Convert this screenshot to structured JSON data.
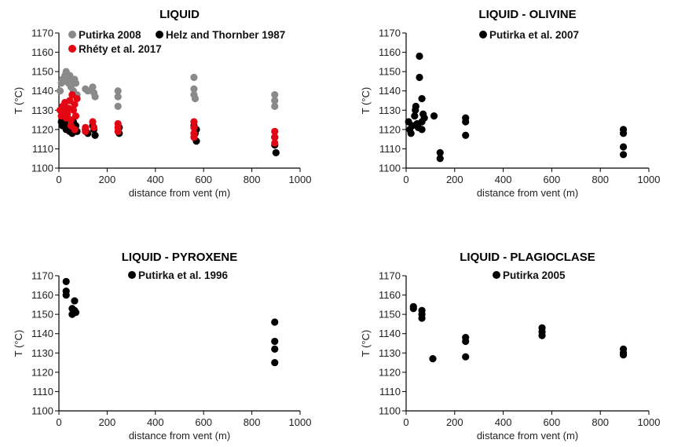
{
  "chart_data": [
    {
      "type": "scatter",
      "title": "LIQUID",
      "xlabel": "distance from vent (m)",
      "ylabel": "T (°C)",
      "xlim": [
        0,
        1000
      ],
      "ylim": [
        1100,
        1170
      ],
      "xticks": [
        0,
        200,
        400,
        600,
        800,
        1000
      ],
      "yticks": [
        1100,
        1110,
        1120,
        1130,
        1140,
        1150,
        1160,
        1170
      ],
      "legend_position": "top",
      "series": [
        {
          "name": "Putirka 2008",
          "color": "#8a8a8a",
          "points": [
            [
              5,
              1140
            ],
            [
              10,
              1144
            ],
            [
              15,
              1146
            ],
            [
              20,
              1145
            ],
            [
              25,
              1148
            ],
            [
              30,
              1150
            ],
            [
              35,
              1147
            ],
            [
              40,
              1144
            ],
            [
              45,
              1148
            ],
            [
              50,
              1142
            ],
            [
              55,
              1145
            ],
            [
              60,
              1140
            ],
            [
              65,
              1146
            ],
            [
              70,
              1144
            ],
            [
              75,
              1138
            ],
            [
              110,
              1141
            ],
            [
              120,
              1140
            ],
            [
              140,
              1142
            ],
            [
              145,
              1139
            ],
            [
              150,
              1137
            ],
            [
              245,
              1140
            ],
            [
              245,
              1137
            ],
            [
              245,
              1132
            ],
            [
              560,
              1147
            ],
            [
              560,
              1141
            ],
            [
              560,
              1138
            ],
            [
              565,
              1136
            ],
            [
              895,
              1138
            ],
            [
              895,
              1135
            ],
            [
              895,
              1132
            ]
          ]
        },
        {
          "name": "Helz and Thornber 1987",
          "color": "#000000",
          "points": [
            [
              10,
              1124
            ],
            [
              15,
              1122
            ],
            [
              20,
              1125
            ],
            [
              25,
              1123
            ],
            [
              30,
              1120
            ],
            [
              35,
              1126
            ],
            [
              40,
              1121
            ],
            [
              45,
              1119
            ],
            [
              50,
              1122
            ],
            [
              55,
              1118
            ],
            [
              60,
              1124
            ],
            [
              65,
              1120
            ],
            [
              70,
              1122
            ],
            [
              75,
              1119
            ],
            [
              110,
              1120
            ],
            [
              120,
              1118
            ],
            [
              140,
              1122
            ],
            [
              145,
              1120
            ],
            [
              150,
              1117
            ],
            [
              250,
              1121
            ],
            [
              250,
              1118
            ],
            [
              560,
              1122
            ],
            [
              565,
              1118
            ],
            [
              570,
              1120
            ],
            [
              570,
              1114
            ],
            [
              895,
              1116
            ],
            [
              895,
              1112
            ],
            [
              900,
              1108
            ]
          ]
        },
        {
          "name": "Rhéty et al. 2017",
          "color": "#e30613",
          "points": [
            [
              5,
              1130
            ],
            [
              10,
              1127
            ],
            [
              15,
              1132
            ],
            [
              20,
              1129
            ],
            [
              25,
              1134
            ],
            [
              30,
              1126
            ],
            [
              35,
              1128
            ],
            [
              40,
              1131
            ],
            [
              45,
              1135
            ],
            [
              50,
              1125
            ],
            [
              55,
              1138
            ],
            [
              60,
              1130
            ],
            [
              65,
              1133
            ],
            [
              70,
              1127
            ],
            [
              75,
              1136
            ],
            [
              50,
              1122
            ],
            [
              65,
              1120
            ],
            [
              110,
              1119
            ],
            [
              110,
              1121
            ],
            [
              140,
              1124
            ],
            [
              145,
              1121
            ],
            [
              245,
              1123
            ],
            [
              245,
              1121
            ],
            [
              245,
              1119
            ],
            [
              560,
              1124
            ],
            [
              560,
              1121
            ],
            [
              560,
              1118
            ],
            [
              560,
              1116
            ],
            [
              895,
              1119
            ],
            [
              895,
              1116
            ],
            [
              895,
              1113
            ]
          ]
        }
      ]
    },
    {
      "type": "scatter",
      "title": "LIQUID - OLIVINE",
      "xlabel": "distance from vent (m)",
      "ylabel": "T (°C)",
      "xlim": [
        0,
        1000
      ],
      "ylim": [
        1100,
        1170
      ],
      "xticks": [
        0,
        200,
        400,
        600,
        800,
        1000
      ],
      "yticks": [
        1100,
        1110,
        1120,
        1130,
        1140,
        1150,
        1160,
        1170
      ],
      "legend_position": "top",
      "series": [
        {
          "name": "Putirka et al. 2007",
          "color": "#000000",
          "points": [
            [
              10,
              1124
            ],
            [
              15,
              1120
            ],
            [
              20,
              1118
            ],
            [
              25,
              1122
            ],
            [
              35,
              1127
            ],
            [
              38,
              1130
            ],
            [
              40,
              1132
            ],
            [
              45,
              1123
            ],
            [
              50,
              1121
            ],
            [
              55,
              1158
            ],
            [
              55,
              1147
            ],
            [
              65,
              1136
            ],
            [
              65,
              1124
            ],
            [
              65,
              1120
            ],
            [
              70,
              1128
            ],
            [
              75,
              1126
            ],
            [
              115,
              1127
            ],
            [
              140,
              1108
            ],
            [
              140,
              1105
            ],
            [
              245,
              1126
            ],
            [
              245,
              1124
            ],
            [
              245,
              1117
            ],
            [
              895,
              1120
            ],
            [
              895,
              1118
            ],
            [
              895,
              1111
            ],
            [
              895,
              1107
            ]
          ]
        }
      ]
    },
    {
      "type": "scatter",
      "title": "LIQUID - PYROXENE",
      "xlabel": "distance from vent (m)",
      "ylabel": "T (°C)",
      "xlim": [
        0,
        1000
      ],
      "ylim": [
        1100,
        1170
      ],
      "xticks": [
        0,
        200,
        400,
        600,
        800,
        1000
      ],
      "yticks": [
        1100,
        1110,
        1120,
        1130,
        1140,
        1150,
        1160,
        1170
      ],
      "legend_position": "top",
      "series": [
        {
          "name": "Putirka et al. 1996",
          "color": "#000000",
          "points": [
            [
              30,
              1167
            ],
            [
              30,
              1162
            ],
            [
              30,
              1160
            ],
            [
              55,
              1153
            ],
            [
              55,
              1150
            ],
            [
              65,
              1157
            ],
            [
              65,
              1152
            ],
            [
              70,
              1151
            ],
            [
              895,
              1146
            ],
            [
              895,
              1136
            ],
            [
              895,
              1132
            ],
            [
              895,
              1125
            ]
          ]
        }
      ]
    },
    {
      "type": "scatter",
      "title": "LIQUID - PLAGIOCLASE",
      "xlabel": "distance from vent (m)",
      "ylabel": "T (°C)",
      "xlim": [
        0,
        1000
      ],
      "ylim": [
        1100,
        1170
      ],
      "xticks": [
        0,
        200,
        400,
        600,
        800,
        1000
      ],
      "yticks": [
        1100,
        1110,
        1120,
        1130,
        1140,
        1150,
        1160,
        1170
      ],
      "legend_position": "top",
      "series": [
        {
          "name": "Putirka 2005",
          "color": "#000000",
          "points": [
            [
              30,
              1154
            ],
            [
              30,
              1153
            ],
            [
              65,
              1152
            ],
            [
              65,
              1150
            ],
            [
              65,
              1148
            ],
            [
              110,
              1127
            ],
            [
              245,
              1138
            ],
            [
              245,
              1136
            ],
            [
              245,
              1128
            ],
            [
              560,
              1143
            ],
            [
              560,
              1141
            ],
            [
              560,
              1139
            ],
            [
              895,
              1132
            ],
            [
              895,
              1130
            ],
            [
              895,
              1129
            ]
          ]
        }
      ]
    }
  ]
}
